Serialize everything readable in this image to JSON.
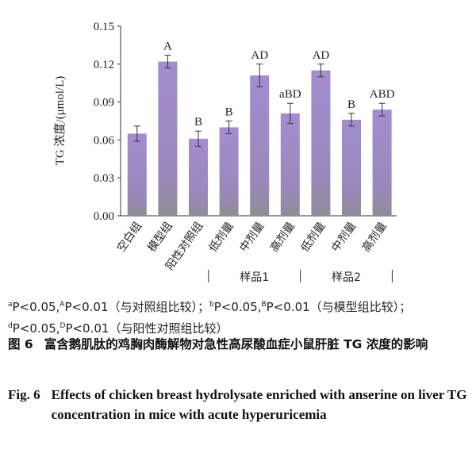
{
  "chart_data": {
    "type": "bar",
    "categories": [
      "空白组",
      "模型组",
      "阳性对照组",
      "低剂量",
      "中剂量",
      "高剂量",
      "低剂量",
      "中剂量",
      "高剂量"
    ],
    "values": [
      0.065,
      0.122,
      0.061,
      0.07,
      0.111,
      0.081,
      0.115,
      0.076,
      0.084
    ],
    "errors": [
      0.006,
      0.005,
      0.006,
      0.005,
      0.009,
      0.008,
      0.005,
      0.005,
      0.005
    ],
    "significance": [
      null,
      "A",
      "B",
      "B",
      "AD",
      "aBD",
      "AD",
      "B",
      "ABD"
    ],
    "groups": [
      "样品1",
      "样品2"
    ],
    "color": "#9f8ac6",
    "ylabel": "TG 浓度/(μmol/L)",
    "ylim": [
      0,
      0.15
    ],
    "yticks": [
      {
        "value": 0,
        "label": "0.00"
      },
      0.03,
      0.06,
      0.09,
      0.12,
      0.15
    ]
  },
  "notes": [
    {
      "sup": "a",
      "text": "P<0.05,"
    },
    {
      "sup": "A",
      "text": "P<0.01（与对照组比较）；"
    },
    {
      "sup": "b",
      "text": "P<0.05,"
    },
    {
      "sup": "B",
      "text": "P<0.01（与模型组比较）；"
    },
    {
      "sup": "d",
      "text": "P<0.05,"
    },
    {
      "sup": "D",
      "text": "P<0.01（与阳性对照组比较）"
    }
  ],
  "caption_cn": {
    "label": "图 6",
    "text": "富含鹅肌肽的鸡胸肉酶解物对急性高尿酸血症小鼠肝脏 TG 浓度的影响"
  },
  "caption_en": {
    "label": "Fig. 6",
    "text": "Effects of chicken breast hydrolysate enriched with anserine on liver TG concentration in mice with acute hyperuricemia"
  }
}
